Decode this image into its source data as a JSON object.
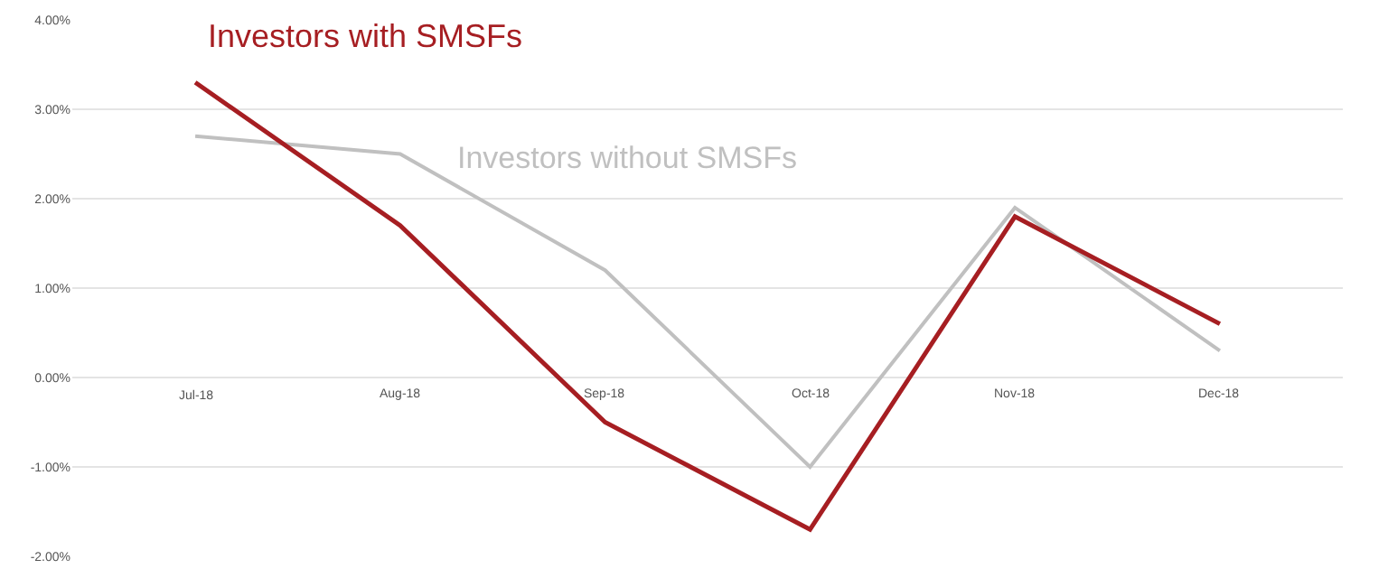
{
  "chart_data": {
    "type": "line",
    "categories": [
      "Jul-18",
      "Aug-18",
      "Sep-18",
      "Oct-18",
      "Nov-18",
      "Dec-18"
    ],
    "series": [
      {
        "name": "Investors without SMSFs",
        "color": "#c0c0c0",
        "values": [
          2.7,
          2.5,
          1.2,
          -1.0,
          1.9,
          0.3
        ]
      },
      {
        "name": "Investors with SMSFs",
        "color": "#a61e22",
        "values": [
          3.3,
          1.7,
          -0.5,
          -1.7,
          1.8,
          0.6
        ]
      }
    ],
    "ylim": [
      -2,
      4
    ],
    "yticks": [
      {
        "value": -2,
        "label": "-2.00%"
      },
      {
        "value": -1,
        "label": "-1.00%"
      },
      {
        "value": 0,
        "label": "0.00%"
      },
      {
        "value": 1,
        "label": "1.00%"
      },
      {
        "value": 2,
        "label": "2.00%"
      },
      {
        "value": 3,
        "label": "3.00%"
      },
      {
        "value": 4,
        "label": "4.00%"
      }
    ],
    "grid": "y",
    "legend": false,
    "marker": "none",
    "line_style": "solid"
  }
}
